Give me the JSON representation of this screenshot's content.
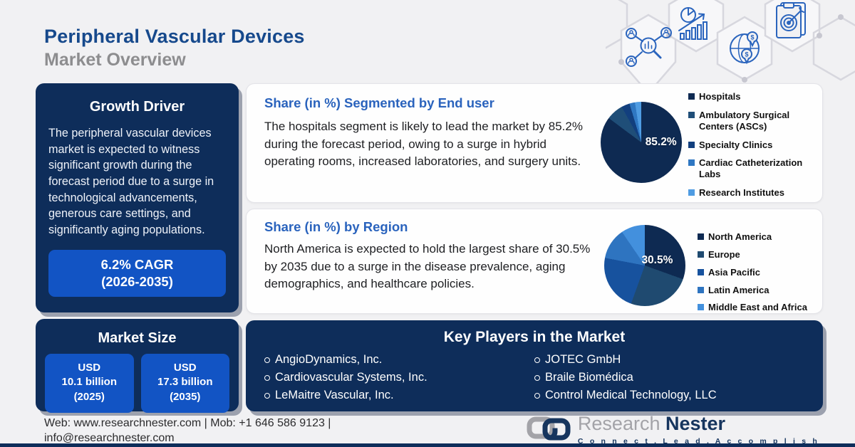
{
  "header": {
    "title_line1": "Peripheral Vascular Devices",
    "title_line2": "Market Overview"
  },
  "growth_driver": {
    "title": "Growth Driver",
    "body": "The peripheral vascular devices market is expected to witness significant growth during the forecast period due to a surge in technological advancements, generous care settings, and significantly aging populations.",
    "cagr_line1": "6.2% CAGR",
    "cagr_line2": "(2026-2035)"
  },
  "market_size": {
    "title": "Market Size",
    "boxes": [
      {
        "line1": "USD",
        "line2": "10.1 billion",
        "line3": "(2025)"
      },
      {
        "line1": "USD",
        "line2": "17.3 billion",
        "line3": "(2035)"
      }
    ]
  },
  "end_user_card": {
    "title": "Share (in %) Segmented by End user",
    "body": "The hospitals segment is likely to lead the market by 85.2% during the forecast period, owing to a surge in hybrid operating rooms, increased laboratories, and surgery units."
  },
  "region_card": {
    "title": "Share (in %) by Region",
    "body": "North America is expected to hold the largest share of 30.5% by 2035 due to a surge in the disease prevalence, aging demographics, and healthcare policies."
  },
  "chart_data": [
    {
      "type": "pie",
      "title": "Share (in %) Segmented by End user",
      "labels": [
        "Hospitals",
        "Ambulatory Surgical Centers (ASCs)",
        "Specialty Clinics",
        "Cardiac Catheterization Labs",
        "Research Institutes"
      ],
      "values": [
        85.2,
        6.8,
        3.3,
        2.2,
        2.5
      ],
      "colors": [
        "#0e2a52",
        "#1f4e78",
        "#123f7e",
        "#2f77c2",
        "#4f9ce2"
      ],
      "center_label": "85.2%",
      "legend_position": "right"
    },
    {
      "type": "pie",
      "title": "Share (in %) by Region",
      "labels": [
        "North America",
        "Europe",
        "Asia Pacific",
        "Latin America",
        "Middle East and Africa"
      ],
      "values": [
        30.5,
        25.0,
        22.5,
        12.5,
        9.5
      ],
      "colors": [
        "#0e2a52",
        "#1f4a70",
        "#17529e",
        "#2e74c0",
        "#4390dd"
      ],
      "center_label": "30.5%",
      "legend_position": "right"
    }
  ],
  "key_players": {
    "title": "Key Players in the Market",
    "column1": [
      "AngioDynamics, Inc.",
      "Cardiovascular Systems, Inc.",
      "LeMaitre Vascular, Inc."
    ],
    "column2": [
      "JOTEC GmbH",
      "Braile Biomédica",
      "Control Medical Technology, LLC"
    ]
  },
  "footer": {
    "contact_line1": "Web: www.researchnester.com | Mob: +1 646 586 9123 |",
    "contact_line2": "info@researchnester.com",
    "logo_text1": "Research",
    "logo_text2": "Nester",
    "tagline": "C o n n e c t .   L e a d .   A c c o m p l i s h"
  },
  "colors": {
    "panel_navy": "#0e2d5a",
    "accent_blue": "#1254c4",
    "heading_blue": "#2a63bd",
    "title_navy": "#16498c",
    "title_gray": "#8d8d8f"
  }
}
